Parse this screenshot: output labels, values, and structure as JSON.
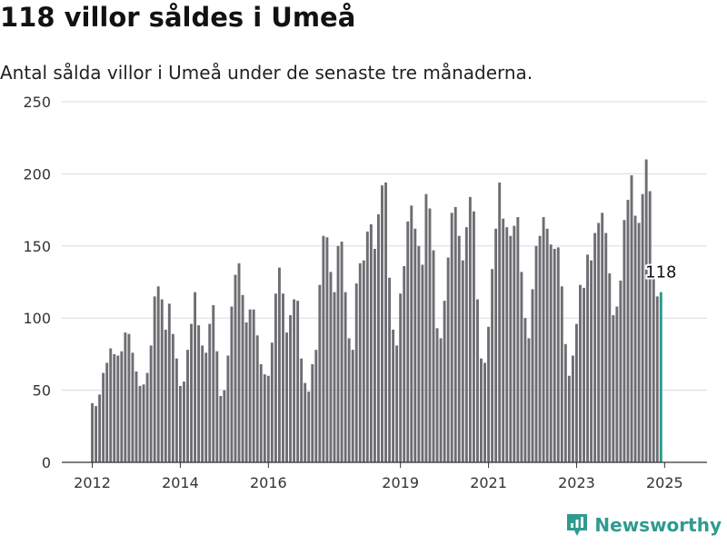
{
  "header": {
    "title": "118 villor såldes i Umeå",
    "subtitle": "Antal sålda villor i Umeå under de senaste tre månaderna."
  },
  "brand": {
    "name": "Newsworthy",
    "icon": "newsworthy-logo-icon",
    "color": "#2e9b8e"
  },
  "colors": {
    "bar": "#6e6d72",
    "highlight": "#2a9a8a",
    "grid": "#dcdcdc",
    "axis": "#333333"
  },
  "chart_data": {
    "type": "bar",
    "title": "118 villor såldes i Umeå",
    "subtitle": "Antal sålda villor i Umeå under de senaste tre månaderna.",
    "xlabel": "",
    "ylabel": "",
    "ylim": [
      0,
      250
    ],
    "yticks": [
      0,
      50,
      100,
      150,
      200,
      250
    ],
    "xticks": [
      "2012",
      "2014",
      "2016",
      "2019",
      "2021",
      "2023",
      "2025"
    ],
    "xlim": [
      "2011-12",
      "2025-05"
    ],
    "frequency": "monthly",
    "start": "2012-01",
    "grid": true,
    "highlight_annotation": "118",
    "values": [
      41,
      39,
      47,
      62,
      69,
      79,
      75,
      74,
      77,
      90,
      89,
      76,
      63,
      53,
      54,
      62,
      81,
      115,
      122,
      113,
      92,
      110,
      89,
      72,
      53,
      56,
      78,
      96,
      118,
      95,
      81,
      76,
      96,
      109,
      77,
      46,
      50,
      74,
      108,
      130,
      138,
      116,
      97,
      106,
      106,
      88,
      68,
      61,
      60,
      83,
      117,
      135,
      117,
      90,
      102,
      113,
      112,
      72,
      55,
      49,
      68,
      78,
      123,
      157,
      156,
      132,
      118,
      150,
      153,
      118,
      86,
      78,
      124,
      138,
      140,
      160,
      165,
      148,
      172,
      192,
      194,
      128,
      92,
      81,
      117,
      136,
      167,
      178,
      162,
      150,
      137,
      186,
      176,
      147,
      93,
      86,
      112,
      142,
      173,
      177,
      157,
      140,
      163,
      184,
      174,
      113,
      72,
      69,
      94,
      134,
      162,
      194,
      169,
      163,
      157,
      164,
      170,
      132,
      100,
      86,
      120,
      150,
      157,
      170,
      162,
      151,
      148,
      149,
      122,
      82,
      60,
      74,
      96,
      123,
      121,
      144,
      140,
      159,
      166,
      173,
      159,
      131,
      102,
      108,
      126,
      168,
      182,
      199,
      171,
      166,
      186,
      210,
      188,
      127,
      115,
      118
    ]
  }
}
